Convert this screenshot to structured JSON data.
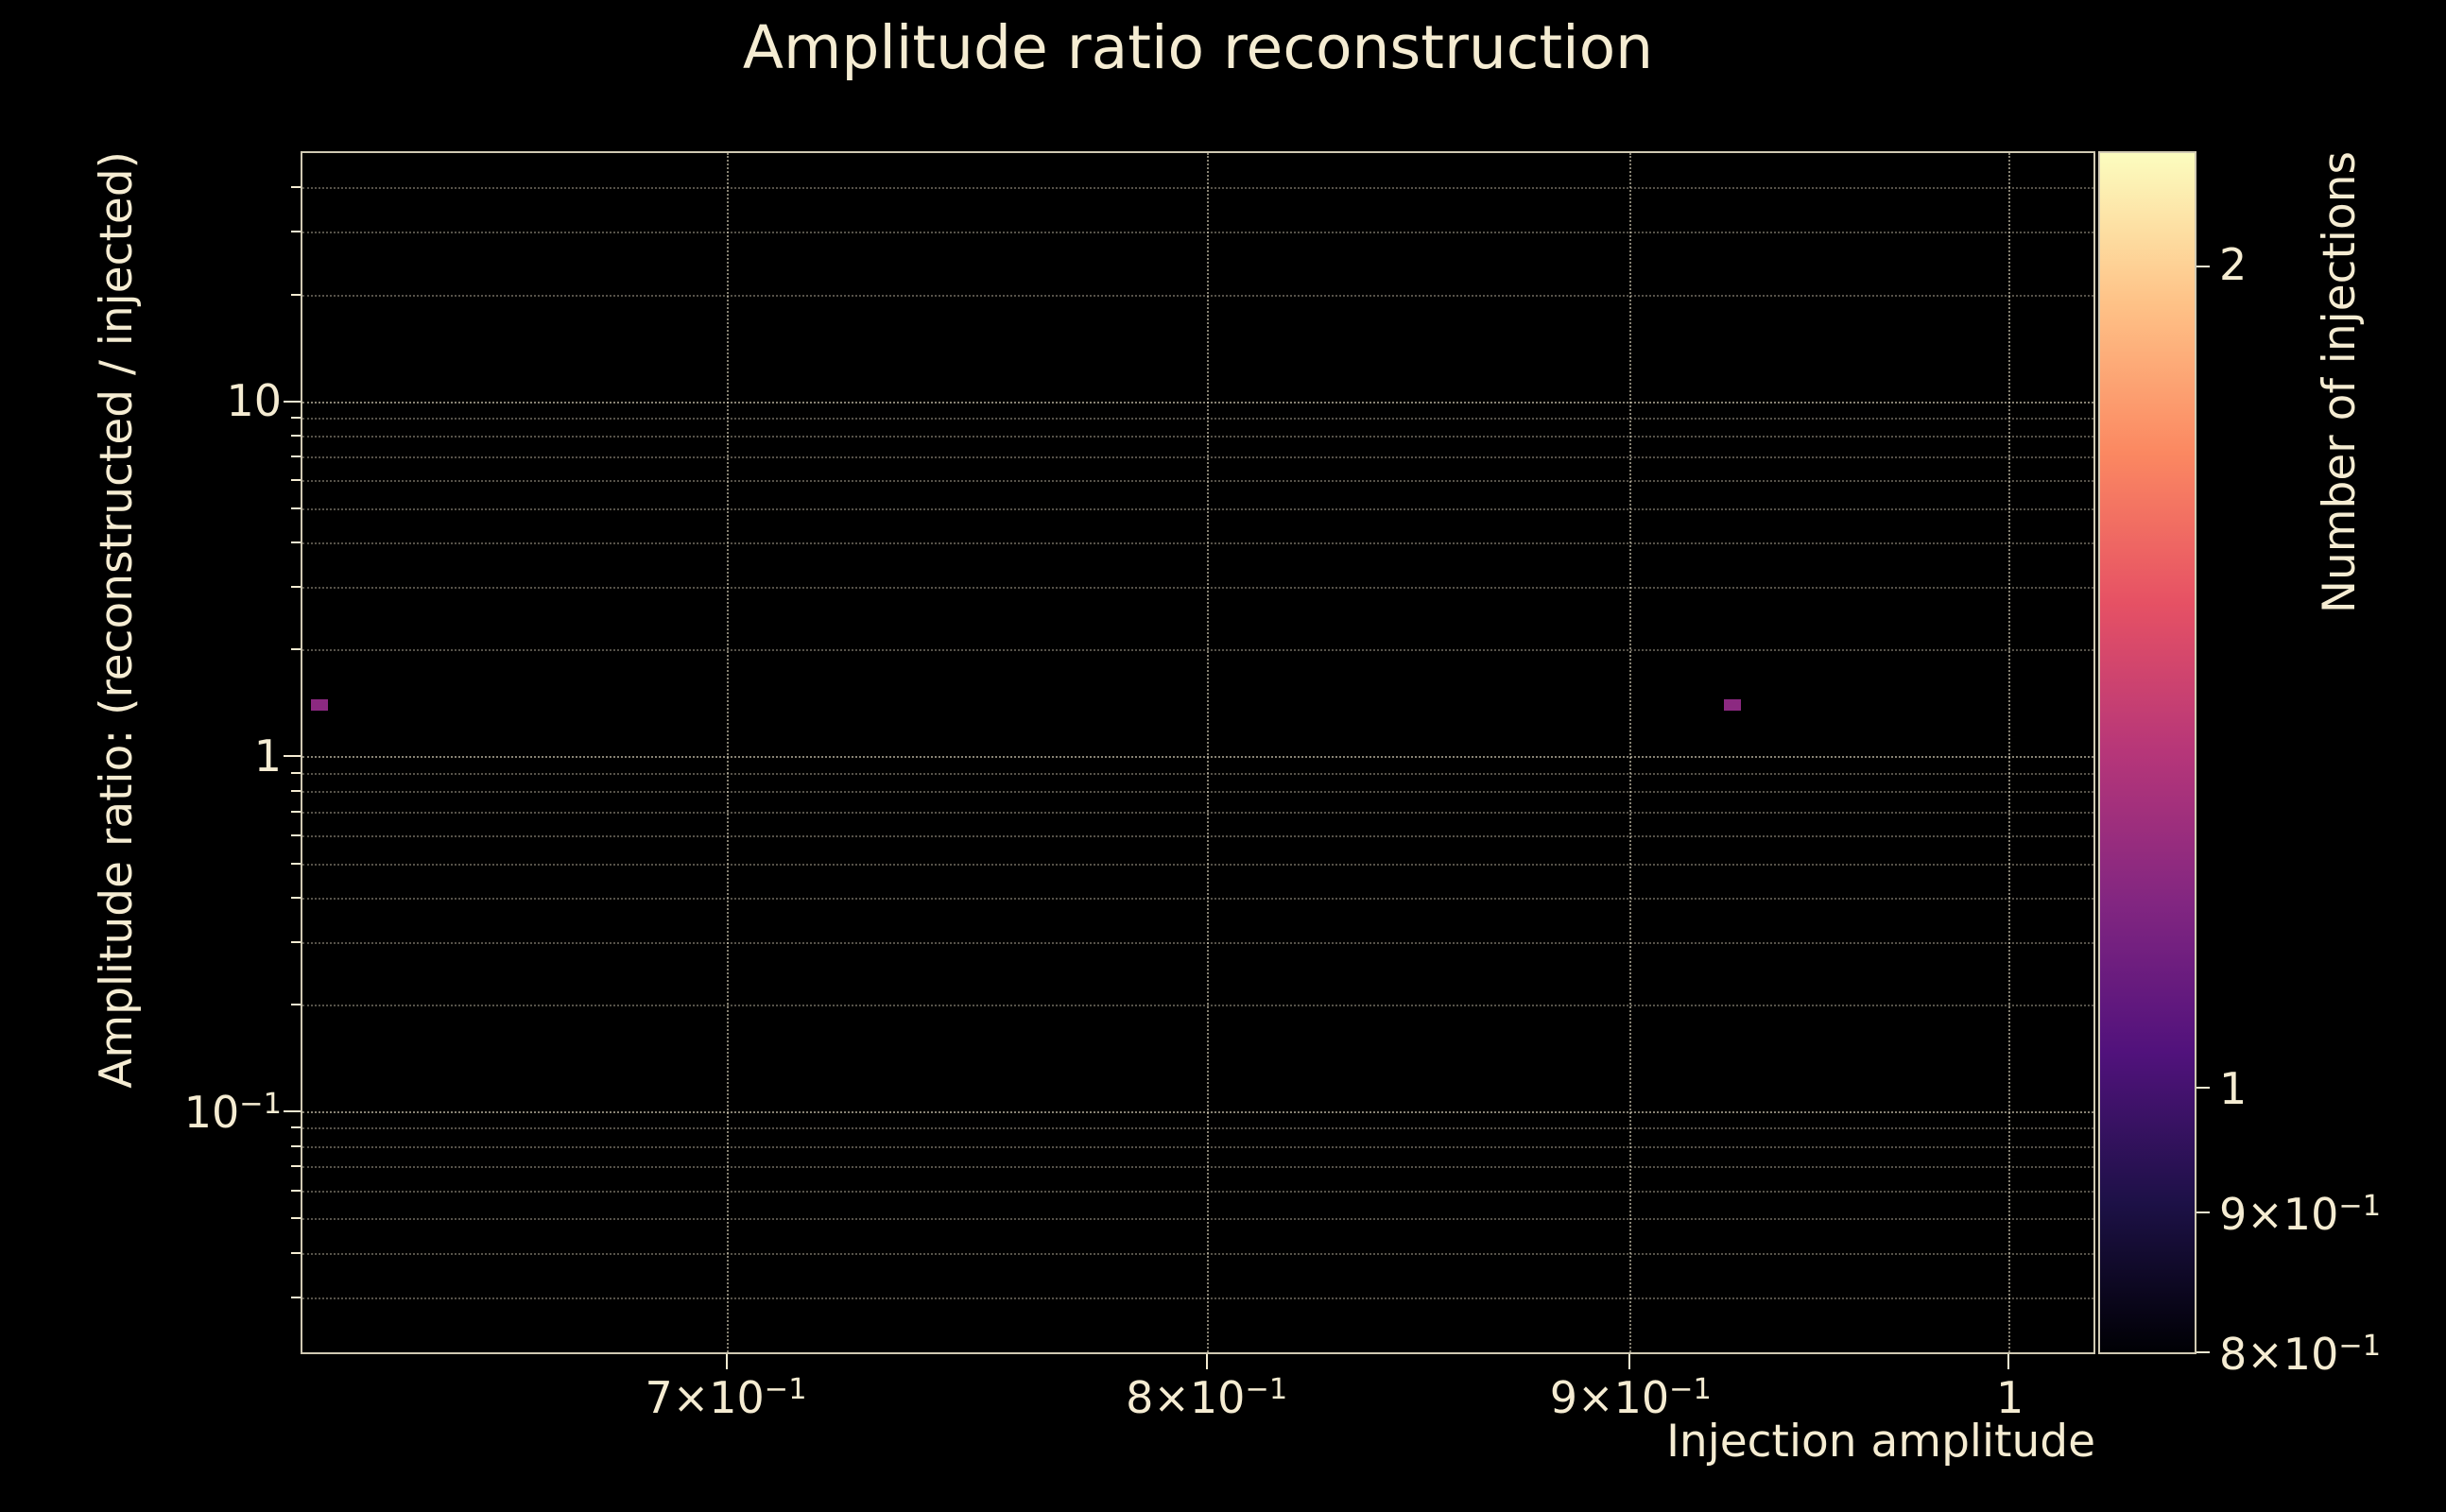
{
  "colors": {
    "background": "#000000",
    "text": "#f5ecd2",
    "grid_minor": "rgba(245,236,210,0.35)",
    "grid_major": "rgba(245,236,210,0.55)",
    "point": "#8c2981"
  },
  "chart_data": {
    "type": "heatmap",
    "title": "Amplitude ratio reconstruction",
    "xlabel": "Injection amplitude",
    "ylabel": "Amplitude ratio: (reconstructed / injected)",
    "xscale": "log",
    "yscale": "log",
    "xlim": [
      0.622,
      1.024
    ],
    "ylim": [
      0.021,
      50
    ],
    "grid": true,
    "x_ticks": [
      {
        "value": 0.7,
        "base": "7×10",
        "exp": "−1"
      },
      {
        "value": 0.8,
        "base": "8×10",
        "exp": "−1"
      },
      {
        "value": 0.9,
        "base": "9×10",
        "exp": "−1"
      },
      {
        "value": 1.0,
        "base": "1",
        "exp": ""
      }
    ],
    "y_ticks": [
      {
        "value": 10,
        "base": "10",
        "exp": ""
      },
      {
        "value": 1,
        "base": "1",
        "exp": ""
      },
      {
        "value": 0.1,
        "base": "10",
        "exp": "−1"
      }
    ],
    "points": [
      {
        "x": 0.625,
        "y": 1.4,
        "count": 1
      },
      {
        "x": 0.926,
        "y": 1.4,
        "count": 1
      }
    ],
    "colorbar": {
      "label": "Number of injections",
      "scale": "log",
      "vmin": 0.8,
      "vmax": 2.2,
      "ticks": [
        {
          "value": 2,
          "base": "2",
          "exp": ""
        },
        {
          "value": 1,
          "base": "1",
          "exp": ""
        },
        {
          "value": 0.9,
          "base": "9×10",
          "exp": "−1"
        },
        {
          "value": 0.8,
          "base": "8×10",
          "exp": "−1"
        }
      ],
      "colormap": "magma",
      "colormap_stops": [
        "#000004",
        "#1d1147",
        "#51127c",
        "#822681",
        "#b63679",
        "#e65164",
        "#fb8861",
        "#fec287",
        "#fcfdbf"
      ]
    }
  }
}
